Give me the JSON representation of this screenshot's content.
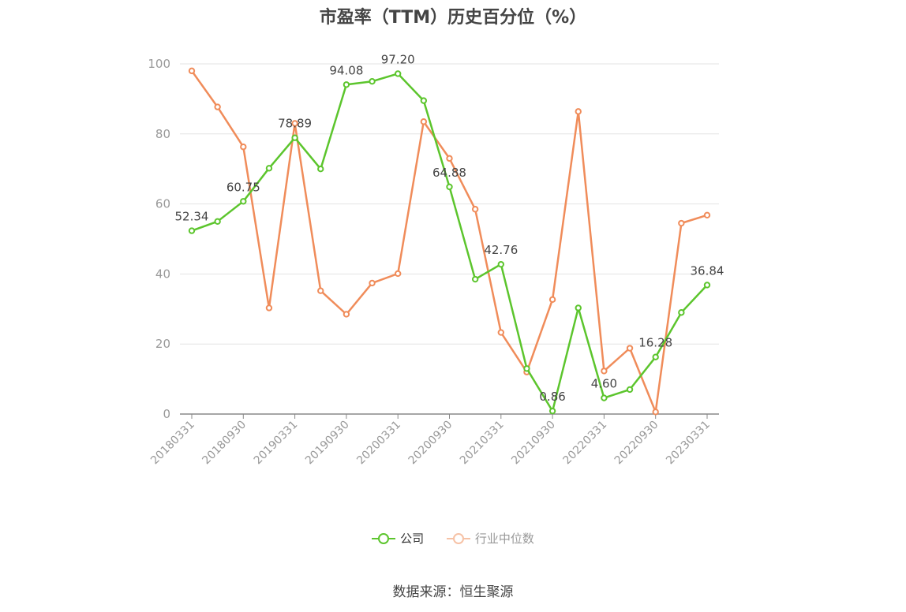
{
  "chart_data": {
    "type": "line",
    "title": "市盈率（TTM）历史百分位（%）",
    "categories": [
      "20180331",
      "20180630",
      "20180930",
      "20181231",
      "20190331",
      "20190630",
      "20190930",
      "20191231",
      "20200331",
      "20200630",
      "20200930",
      "20201231",
      "20210331",
      "20210630",
      "20210930",
      "20211231",
      "20220331",
      "20220630",
      "20220930",
      "20221231",
      "20230331"
    ],
    "tick_labels": [
      "20180331",
      "20180930",
      "20190331",
      "20190930",
      "20200331",
      "20200930",
      "20210331",
      "20210930",
      "20220331",
      "20220930",
      "20230331"
    ],
    "ylim": [
      0,
      100
    ],
    "yticks": [
      0,
      20,
      40,
      60,
      80,
      100
    ],
    "grid": true,
    "legend_position": "bottom",
    "series": [
      {
        "name": "公司",
        "color": "#5cc52d",
        "values": [
          52.34,
          55.0,
          60.75,
          70.2,
          78.89,
          70.0,
          94.08,
          95.0,
          97.2,
          89.5,
          64.88,
          38.5,
          42.76,
          13.0,
          0.86,
          30.3,
          4.6,
          7.0,
          16.28,
          29.0,
          36.84
        ],
        "labels": [
          "52.34",
          "",
          "60.75",
          "",
          "78.89",
          "",
          "94.08",
          "",
          "97.20",
          "",
          "64.88",
          "",
          "42.76",
          "",
          "0.86",
          "",
          "4.60",
          "",
          "16.28",
          "",
          "36.84"
        ]
      },
      {
        "name": "行业中位数",
        "color": "#f08c5a",
        "values": [
          98.0,
          87.7,
          76.3,
          30.3,
          83.0,
          35.2,
          28.5,
          37.4,
          40.1,
          83.5,
          73.0,
          58.5,
          23.3,
          12.0,
          32.7,
          86.4,
          12.3,
          18.8,
          0.6,
          54.5,
          56.8
        ]
      }
    ]
  },
  "legend": {
    "company_label": "公司",
    "industry_label": "行业中位数"
  },
  "source_text": "数据来源：恒生聚源"
}
